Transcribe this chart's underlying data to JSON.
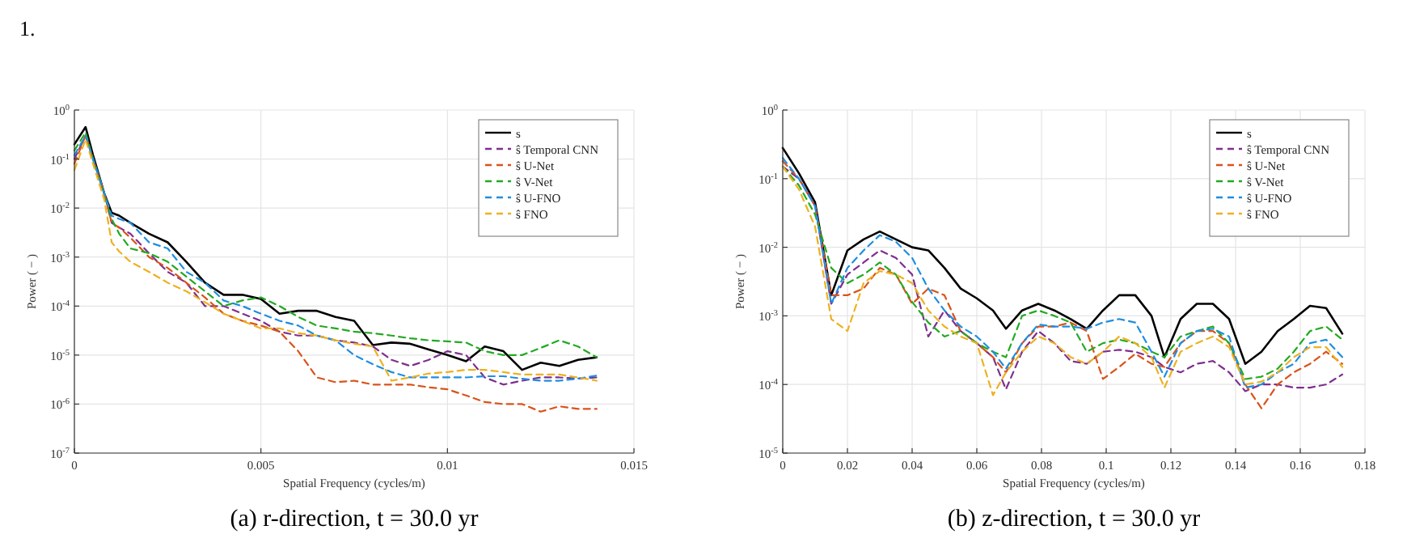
{
  "chart_data": [
    {
      "type": "line",
      "title": "(a) r-direction, t = 30.0 yr",
      "xlabel": "Spatial Frequency (cycles/m)",
      "ylabel": "Power ( − )",
      "annotations": [
        "1."
      ],
      "log": "y",
      "grid": true,
      "legend": "top right",
      "line_style": "dashed",
      "x": [
        0,
        0.0003,
        0.0005,
        0.0008,
        0.001,
        0.0012,
        0.0015,
        0.002,
        0.0025,
        0.003,
        0.0035,
        0.004,
        0.0045,
        0.005,
        0.0055,
        0.006,
        0.0065,
        0.007,
        0.0075,
        0.008,
        0.0085,
        0.009,
        0.0095,
        0.01,
        0.0105,
        0.011,
        0.0115,
        0.012,
        0.0125,
        0.013,
        0.0135,
        0.014
      ],
      "xlim": [
        0,
        0.015
      ],
      "xticks": [
        0,
        0.005,
        0.01,
        0.015
      ],
      "ylim": [
        1e-07,
        1
      ],
      "yticks": [
        {
          "value": 1e-07,
          "label": "10$^{-7}$"
        },
        {
          "value": 1e-06,
          "label": "10$^{-6}$"
        },
        {
          "value": 1e-05,
          "label": "10$^{-5}$"
        },
        {
          "value": 0.0001,
          "label": "10$^{-4}$"
        },
        {
          "value": 0.001,
          "label": "10$^{-3}$"
        },
        {
          "value": 0.01,
          "label": "10$^{-2}$"
        },
        {
          "value": 0.1,
          "label": "10$^{-1}$"
        },
        {
          "value": 1,
          "label": "10$^{0}$"
        }
      ],
      "series": [
        {
          "name": "s",
          "color": "#000000",
          "line_style": "solid",
          "values": [
            0.2,
            0.45,
            0.12,
            0.02,
            0.008,
            0.007,
            0.005,
            0.003,
            0.002,
            0.0008,
            0.0003,
            0.00017,
            0.00017,
            0.00014,
            7e-05,
            8e-05,
            8e-05,
            6e-05,
            5e-05,
            1.6e-05,
            1.8e-05,
            1.7e-05,
            1.3e-05,
            1e-05,
            7.5e-06,
            1.5e-05,
            1.2e-05,
            5e-06,
            7e-06,
            6e-06,
            8e-06,
            9e-06
          ]
        },
        {
          "name": "ŝ Temporal CNN",
          "color": "#7e2f8e",
          "values": [
            0.1,
            0.3,
            0.1,
            0.02,
            0.005,
            0.004,
            0.003,
            0.0012,
            0.0005,
            0.0003,
            0.0001,
            0.0001,
            7e-05,
            5e-05,
            3e-05,
            2.5e-05,
            2.5e-05,
            2e-05,
            1.8e-05,
            1.5e-05,
            8e-06,
            6e-06,
            8e-06,
            1.2e-05,
            1e-05,
            3.5e-06,
            2.5e-06,
            3e-06,
            3.5e-06,
            3.5e-06,
            3.3e-06,
            3.5e-06
          ]
        },
        {
          "name": "ŝ U-Net",
          "color": "#d95319",
          "values": [
            0.08,
            0.3,
            0.1,
            0.02,
            0.005,
            0.004,
            0.0025,
            0.001,
            0.0006,
            0.0003,
            0.00015,
            7e-05,
            5e-05,
            4e-05,
            3e-05,
            1.2e-05,
            3.5e-06,
            2.8e-06,
            3e-06,
            2.5e-06,
            2.5e-06,
            2.5e-06,
            2.2e-06,
            2e-06,
            1.5e-06,
            1.1e-06,
            1e-06,
            1e-06,
            7e-07,
            9e-07,
            8e-07,
            8e-07
          ]
        },
        {
          "name": "ŝ V-Net",
          "color": "#22aa22",
          "values": [
            0.15,
            0.35,
            0.1,
            0.02,
            0.006,
            0.003,
            0.0015,
            0.0012,
            0.0008,
            0.0004,
            0.0002,
            0.0001,
            0.00013,
            0.00015,
            0.0001,
            6e-05,
            4e-05,
            3.5e-05,
            3e-05,
            2.8e-05,
            2.5e-05,
            2.2e-05,
            2e-05,
            1.9e-05,
            1.8e-05,
            1.2e-05,
            1e-05,
            1e-05,
            1.4e-05,
            2e-05,
            1.5e-05,
            9e-06
          ]
        },
        {
          "name": "ŝ U-FNO",
          "color": "#1f8ee0",
          "values": [
            0.12,
            0.3,
            0.1,
            0.02,
            0.007,
            0.006,
            0.005,
            0.002,
            0.0015,
            0.0005,
            0.0003,
            0.00013,
            0.0001,
            7e-05,
            5e-05,
            4e-05,
            2.5e-05,
            2e-05,
            1e-05,
            6.5e-06,
            4.5e-06,
            3.5e-06,
            3.5e-06,
            3.5e-06,
            3.5e-06,
            3.7e-06,
            3.7e-06,
            3.3e-06,
            3e-06,
            3e-06,
            3.3e-06,
            3.8e-06
          ]
        },
        {
          "name": "ŝ FNO",
          "color": "#edb120",
          "values": [
            0.06,
            0.25,
            0.08,
            0.015,
            0.002,
            0.0013,
            0.0008,
            0.0005,
            0.0003,
            0.0002,
            0.00012,
            7e-05,
            5e-05,
            3.5e-05,
            3.5e-05,
            2.8e-05,
            2.5e-05,
            2e-05,
            1.7e-05,
            1.5e-05,
            3e-06,
            3.5e-06,
            4.2e-06,
            4.5e-06,
            5e-06,
            5e-06,
            4.5e-06,
            4e-06,
            4e-06,
            4e-06,
            3.5e-06,
            3e-06
          ]
        }
      ]
    },
    {
      "type": "line",
      "title": "(b) z-direction, t = 30.0 yr",
      "xlabel": "Spatial Frequency (cycles/m)",
      "ylabel": "Power ( − )",
      "log": "y",
      "grid": true,
      "legend": "top right",
      "line_style": "dashed",
      "x": [
        0,
        0.005,
        0.01,
        0.015,
        0.02,
        0.025,
        0.03,
        0.035,
        0.04,
        0.045,
        0.05,
        0.055,
        0.06,
        0.065,
        0.069,
        0.074,
        0.079,
        0.084,
        0.089,
        0.094,
        0.099,
        0.104,
        0.109,
        0.114,
        0.118,
        0.123,
        0.128,
        0.133,
        0.138,
        0.143,
        0.148,
        0.153,
        0.158,
        0.163,
        0.168,
        0.173
      ],
      "xlim": [
        0,
        0.18
      ],
      "xticks": [
        0,
        0.02,
        0.04,
        0.06,
        0.08,
        0.1,
        0.12,
        0.14,
        0.16,
        0.18
      ],
      "ylim": [
        1e-05,
        1
      ],
      "yticks": [
        {
          "value": 1e-05,
          "label": "10$^{-5}$"
        },
        {
          "value": 0.0001,
          "label": "10$^{-4}$"
        },
        {
          "value": 0.001,
          "label": "10$^{-3}$"
        },
        {
          "value": 0.01,
          "label": "10$^{-2}$"
        },
        {
          "value": 0.1,
          "label": "10$^{-1}$"
        },
        {
          "value": 1,
          "label": "10$^{0}$"
        }
      ],
      "series": [
        {
          "name": "s",
          "color": "#000000",
          "line_style": "solid",
          "values": [
            0.28,
            0.12,
            0.045,
            0.002,
            0.009,
            0.013,
            0.017,
            0.013,
            0.01,
            0.009,
            0.005,
            0.0025,
            0.0018,
            0.0012,
            0.00065,
            0.0012,
            0.0015,
            0.0012,
            0.0009,
            0.00065,
            0.0012,
            0.002,
            0.002,
            0.001,
            0.00025,
            0.0009,
            0.0015,
            0.0015,
            0.0009,
            0.0002,
            0.0003,
            0.0006,
            0.0009,
            0.0014,
            0.0013,
            0.00055
          ]
        },
        {
          "name": "ŝ Temporal CNN",
          "color": "#7e2f8e",
          "values": [
            0.15,
            0.1,
            0.04,
            0.0015,
            0.004,
            0.006,
            0.009,
            0.007,
            0.004,
            0.0005,
            0.0012,
            0.0006,
            0.0004,
            0.00025,
            8.5e-05,
            0.0003,
            0.0006,
            0.0004,
            0.00022,
            0.0002,
            0.0003,
            0.00032,
            0.0003,
            0.00025,
            0.00018,
            0.00015,
            0.0002,
            0.00022,
            0.00015,
            8e-05,
            0.0001,
            0.0001,
            9e-05,
            9e-05,
            0.0001,
            0.00014
          ]
        },
        {
          "name": "ŝ U-Net",
          "color": "#d95319",
          "values": [
            0.18,
            0.1,
            0.04,
            0.002,
            0.002,
            0.0025,
            0.005,
            0.004,
            0.0015,
            0.0025,
            0.002,
            0.0006,
            0.0004,
            0.00025,
            0.00015,
            0.0004,
            0.0007,
            0.0007,
            0.0008,
            0.0006,
            0.00012,
            0.00018,
            0.00028,
            0.0002,
            0.00018,
            0.0004,
            0.0006,
            0.0006,
            0.0004,
            0.0001,
            4.5e-05,
            0.0001,
            0.00015,
            0.0002,
            0.0003,
            0.0002
          ]
        },
        {
          "name": "ŝ V-Net",
          "color": "#22aa22",
          "values": [
            0.15,
            0.08,
            0.03,
            0.005,
            0.003,
            0.004,
            0.006,
            0.004,
            0.0016,
            0.0008,
            0.0005,
            0.0006,
            0.0004,
            0.0003,
            0.00025,
            0.001,
            0.0012,
            0.001,
            0.0008,
            0.0003,
            0.0004,
            0.00045,
            0.0004,
            0.0003,
            0.00025,
            0.0005,
            0.0006,
            0.0007,
            0.0004,
            0.00012,
            0.00013,
            0.00017,
            0.0003,
            0.0006,
            0.0007,
            0.00045
          ]
        },
        {
          "name": "ŝ U-FNO",
          "color": "#1f8ee0",
          "values": [
            0.2,
            0.1,
            0.04,
            0.0015,
            0.005,
            0.009,
            0.015,
            0.012,
            0.007,
            0.0025,
            0.0012,
            0.0007,
            0.0005,
            0.0003,
            0.00017,
            0.0004,
            0.00075,
            0.0007,
            0.0007,
            0.00065,
            0.0008,
            0.0009,
            0.0008,
            0.0003,
            0.00013,
            0.0004,
            0.0006,
            0.00065,
            0.0005,
            9e-05,
            0.0001,
            0.00015,
            0.0002,
            0.0004,
            0.00045,
            0.00025
          ]
        },
        {
          "name": "ŝ FNO",
          "color": "#edb120",
          "values": [
            0.15,
            0.07,
            0.02,
            0.0009,
            0.0006,
            0.003,
            0.0045,
            0.004,
            0.003,
            0.0012,
            0.0007,
            0.0005,
            0.0004,
            7e-05,
            0.00015,
            0.0003,
            0.0005,
            0.0004,
            0.00025,
            0.0002,
            0.0003,
            0.0005,
            0.0004,
            0.00025,
            9e-05,
            0.0003,
            0.0004,
            0.0005,
            0.00035,
            0.0001,
            0.00011,
            0.00015,
            0.00025,
            0.00035,
            0.00035,
            0.00018
          ]
        }
      ]
    }
  ]
}
